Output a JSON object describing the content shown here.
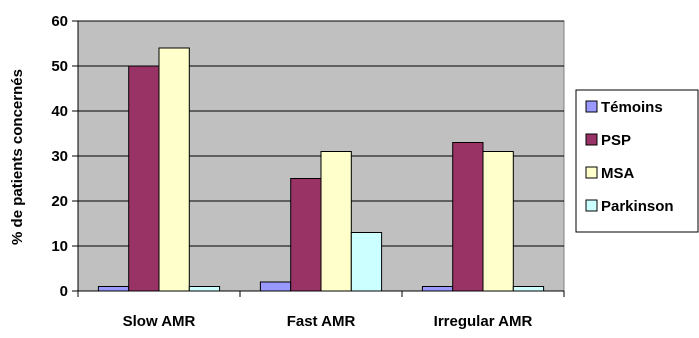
{
  "chart_data": {
    "type": "bar",
    "title": "",
    "xlabel": "",
    "ylabel": "% de patients concernés",
    "ylim": [
      0,
      60
    ],
    "yticks": [
      0,
      10,
      20,
      30,
      40,
      50,
      60
    ],
    "grid": true,
    "legend_position": "right",
    "categories": [
      "Slow AMR",
      "Fast AMR",
      "Irregular AMR"
    ],
    "series": [
      {
        "name": "Témoins",
        "color": "#9999ff",
        "values": [
          1,
          2,
          1
        ]
      },
      {
        "name": "PSP",
        "color": "#993366",
        "values": [
          50,
          25,
          33
        ]
      },
      {
        "name": "MSA",
        "color": "#ffffcc",
        "values": [
          54,
          31,
          31
        ]
      },
      {
        "name": "Parkinson",
        "color": "#ccffff",
        "values": [
          1,
          13,
          1
        ]
      }
    ],
    "colors": {
      "plot_background": "#c0c0c0",
      "gridline": "#000000"
    }
  }
}
